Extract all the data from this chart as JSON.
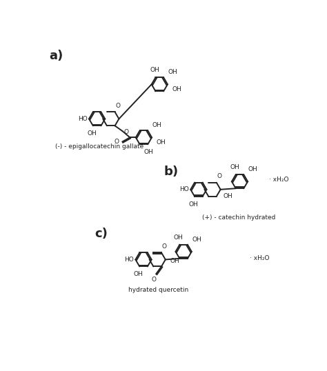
{
  "bg_color": "#ffffff",
  "line_color": "#222222",
  "lw": 1.4,
  "label_a": "a)",
  "label_b": "b)",
  "label_c": "c)",
  "caption_a": "(-) - epigallocatechin gallate",
  "caption_b": "(+) - catechin hydrated",
  "caption_c": "hydrated quercetin",
  "fs_label": 13,
  "fs_text": 6.5,
  "fs_caption": 6.5
}
